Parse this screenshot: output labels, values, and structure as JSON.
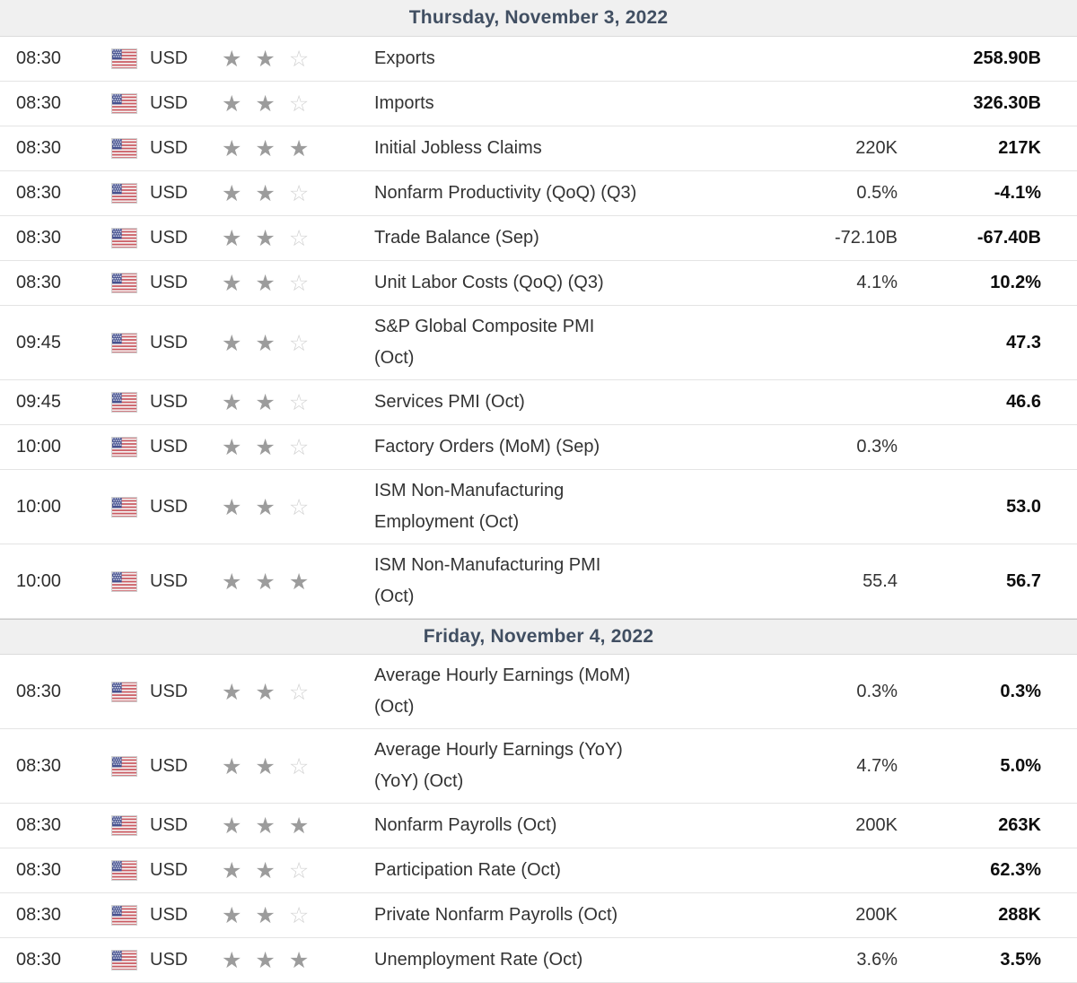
{
  "calendar": {
    "icons": {
      "star_filled": "★",
      "star_empty": "☆",
      "flag": "us-flag"
    },
    "colors": {
      "header_bg": "#f0f0f0",
      "header_text": "#414f62",
      "row_border": "#e4e4e4",
      "star_filled": "#9c9c9c",
      "star_empty": "#d2d2d2",
      "previous_text": "#0d0d0d",
      "body_text": "#333333",
      "flag_red": "#cb5b62",
      "flag_blue": "#47528f"
    },
    "sections": [
      {
        "date_label": "Thursday, November 3, 2022",
        "rows": [
          {
            "time": "08:30",
            "currency": "USD",
            "flag": "us",
            "importance": 2,
            "max_importance": 3,
            "event_lines": [
              "Exports"
            ],
            "forecast": "",
            "previous": "258.90B"
          },
          {
            "time": "08:30",
            "currency": "USD",
            "flag": "us",
            "importance": 2,
            "max_importance": 3,
            "event_lines": [
              "Imports"
            ],
            "forecast": "",
            "previous": "326.30B"
          },
          {
            "time": "08:30",
            "currency": "USD",
            "flag": "us",
            "importance": 3,
            "max_importance": 3,
            "event_lines": [
              "Initial Jobless Claims"
            ],
            "forecast": "220K",
            "previous": "217K"
          },
          {
            "time": "08:30",
            "currency": "USD",
            "flag": "us",
            "importance": 2,
            "max_importance": 3,
            "event_lines": [
              "Nonfarm Productivity (QoQ) (Q3)"
            ],
            "forecast": "0.5%",
            "previous": "-4.1%"
          },
          {
            "time": "08:30",
            "currency": "USD",
            "flag": "us",
            "importance": 2,
            "max_importance": 3,
            "event_lines": [
              "Trade Balance (Sep)"
            ],
            "forecast": "-72.10B",
            "previous": "-67.40B"
          },
          {
            "time": "08:30",
            "currency": "USD",
            "flag": "us",
            "importance": 2,
            "max_importance": 3,
            "event_lines": [
              "Unit Labor Costs (QoQ) (Q3)"
            ],
            "forecast": "4.1%",
            "previous": "10.2%"
          },
          {
            "time": "09:45",
            "currency": "USD",
            "flag": "us",
            "importance": 2,
            "max_importance": 3,
            "event_lines": [
              "S&P Global Composite PMI",
              "(Oct)"
            ],
            "forecast": "",
            "previous": "47.3"
          },
          {
            "time": "09:45",
            "currency": "USD",
            "flag": "us",
            "importance": 2,
            "max_importance": 3,
            "event_lines": [
              "Services PMI (Oct)"
            ],
            "forecast": "",
            "previous": "46.6"
          },
          {
            "time": "10:00",
            "currency": "USD",
            "flag": "us",
            "importance": 2,
            "max_importance": 3,
            "event_lines": [
              "Factory Orders (MoM) (Sep)"
            ],
            "forecast": "0.3%",
            "previous": ""
          },
          {
            "time": "10:00",
            "currency": "USD",
            "flag": "us",
            "importance": 2,
            "max_importance": 3,
            "event_lines": [
              "ISM Non-Manufacturing",
              "Employment (Oct)"
            ],
            "forecast": "",
            "previous": "53.0"
          },
          {
            "time": "10:00",
            "currency": "USD",
            "flag": "us",
            "importance": 3,
            "max_importance": 3,
            "event_lines": [
              "ISM Non-Manufacturing PMI",
              "(Oct)"
            ],
            "forecast": "55.4",
            "previous": "56.7"
          }
        ]
      },
      {
        "date_label": "Friday, November 4, 2022",
        "rows": [
          {
            "time": "08:30",
            "currency": "USD",
            "flag": "us",
            "importance": 2,
            "max_importance": 3,
            "event_lines": [
              "Average Hourly Earnings (MoM)",
              "(Oct)"
            ],
            "forecast": "0.3%",
            "previous": "0.3%"
          },
          {
            "time": "08:30",
            "currency": "USD",
            "flag": "us",
            "importance": 2,
            "max_importance": 3,
            "event_lines": [
              "Average Hourly Earnings (YoY)",
              "(YoY) (Oct)"
            ],
            "forecast": "4.7%",
            "previous": "5.0%"
          },
          {
            "time": "08:30",
            "currency": "USD",
            "flag": "us",
            "importance": 3,
            "max_importance": 3,
            "event_lines": [
              "Nonfarm Payrolls (Oct)"
            ],
            "forecast": "200K",
            "previous": "263K"
          },
          {
            "time": "08:30",
            "currency": "USD",
            "flag": "us",
            "importance": 2,
            "max_importance": 3,
            "event_lines": [
              "Participation Rate (Oct)"
            ],
            "forecast": "",
            "previous": "62.3%"
          },
          {
            "time": "08:30",
            "currency": "USD",
            "flag": "us",
            "importance": 2,
            "max_importance": 3,
            "event_lines": [
              "Private Nonfarm Payrolls (Oct)"
            ],
            "forecast": "200K",
            "previous": "288K"
          },
          {
            "time": "08:30",
            "currency": "USD",
            "flag": "us",
            "importance": 3,
            "max_importance": 3,
            "event_lines": [
              "Unemployment Rate (Oct)"
            ],
            "forecast": "3.6%",
            "previous": "3.5%"
          }
        ]
      }
    ]
  }
}
